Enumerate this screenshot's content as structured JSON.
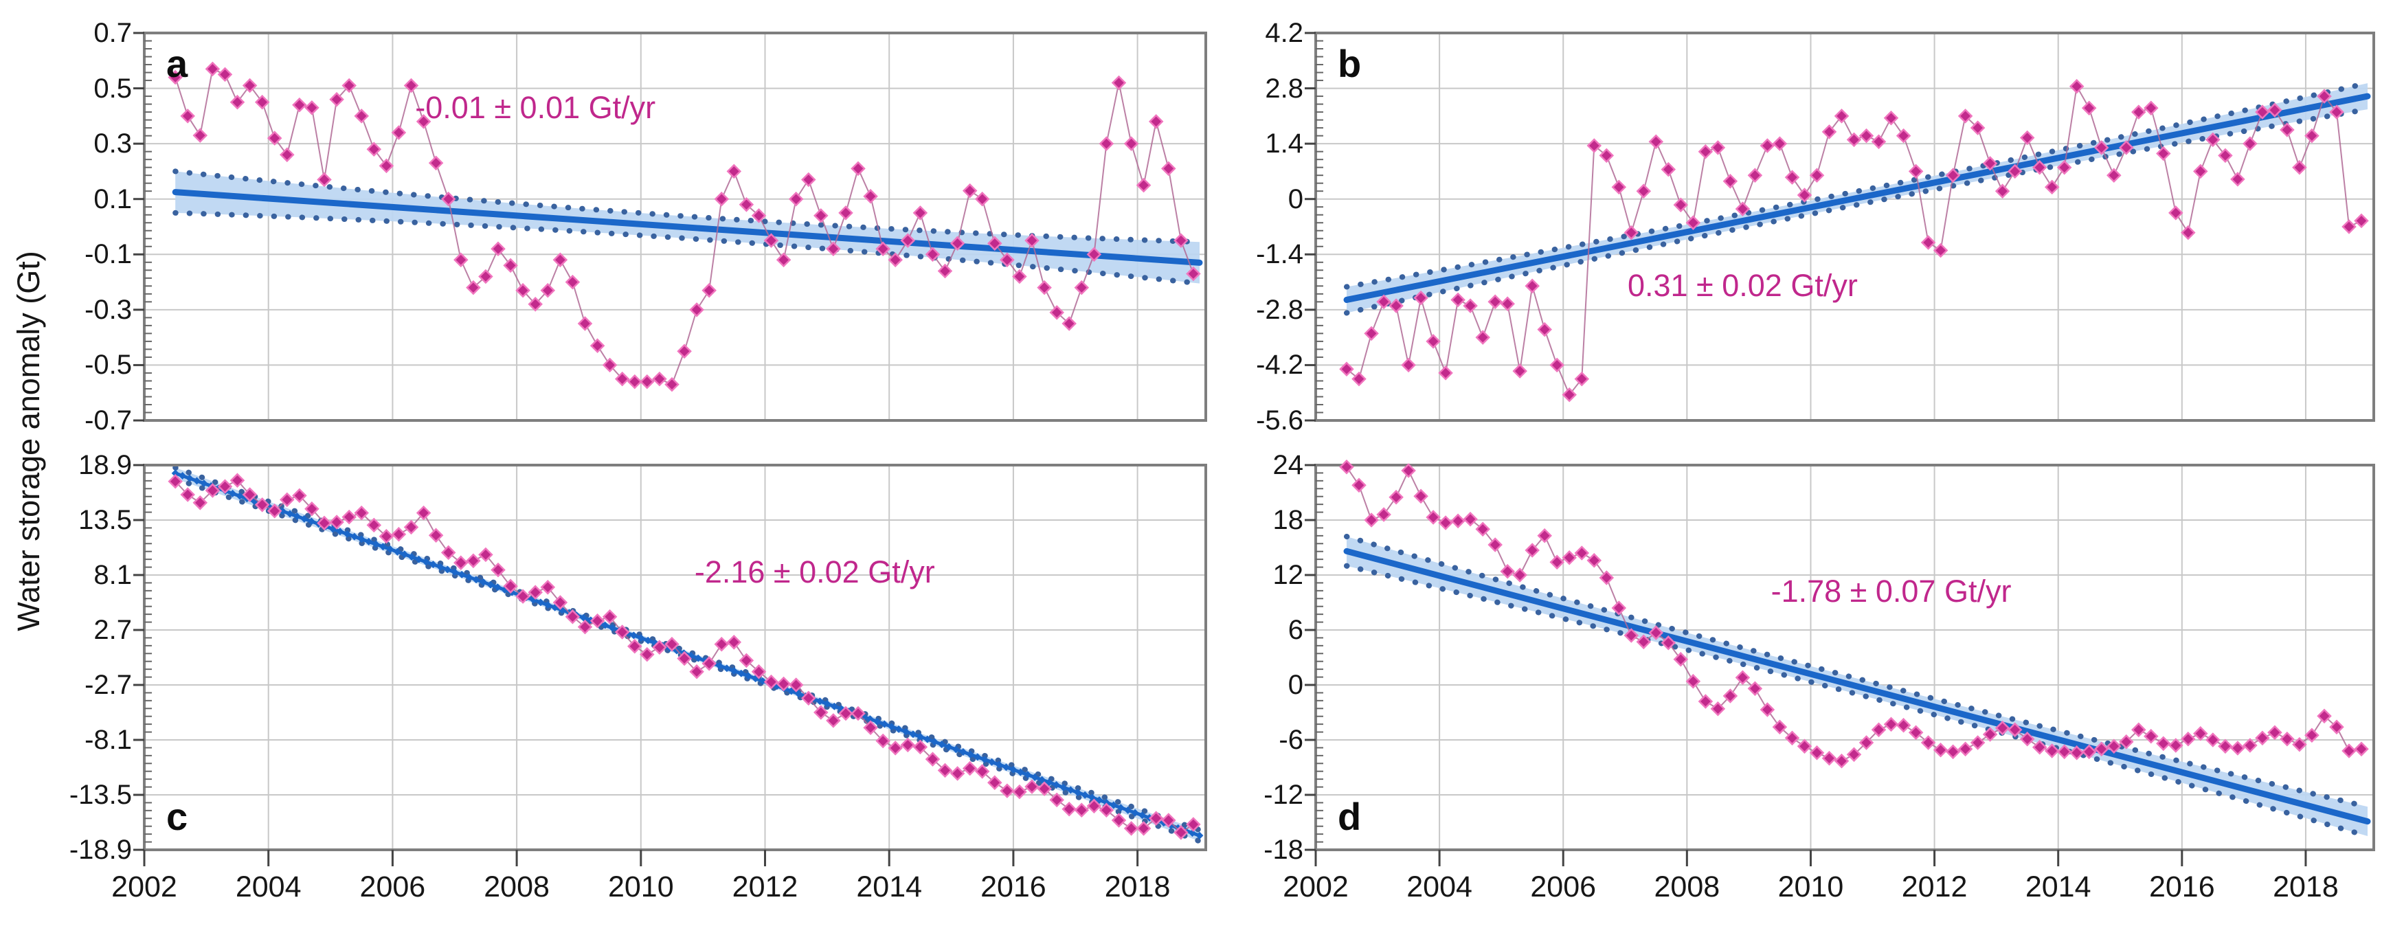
{
  "figure": {
    "y_axis_title": "Water storage anomaly (Gt)"
  },
  "colors": {
    "series": "#C22A8C",
    "series_halo": "#F075BE",
    "series_line": "#B06A95",
    "trend": "#1B67C9",
    "band": "#BCD6F2",
    "bound_dots": "#39629F",
    "annotation": "#C0278C",
    "grid": "#C8C8C8",
    "border": "#7E7E7E",
    "tick": "#444444",
    "minor_tick": "#666666"
  },
  "chart_data": [
    {
      "type": "scatter-line",
      "id": "a",
      "letter": "a",
      "letter_pos": "top",
      "annotation": {
        "text": "-0.01 ± 0.01 Gt/yr",
        "x": 2008.3,
        "y": 0.43
      },
      "x_range": [
        2002,
        2019.1
      ],
      "y_range": [
        -0.7,
        0.7
      ],
      "x_ticks": [
        2002,
        2004,
        2006,
        2008,
        2010,
        2012,
        2014,
        2016,
        2018
      ],
      "y_ticks": [
        "0.7",
        "0.5",
        "0.3",
        "0.1",
        "-0.1",
        "-0.3",
        "-0.5",
        "-0.7"
      ],
      "series": {
        "x_start": 2002.5,
        "x_step": 0.2,
        "values": [
          0.54,
          0.4,
          0.33,
          0.57,
          0.55,
          0.45,
          0.51,
          0.45,
          0.32,
          0.26,
          0.44,
          0.43,
          0.17,
          0.46,
          0.51,
          0.4,
          0.28,
          0.22,
          0.34,
          0.51,
          0.38,
          0.23,
          0.1,
          -0.12,
          -0.22,
          -0.18,
          -0.08,
          -0.14,
          -0.23,
          -0.28,
          -0.23,
          -0.12,
          -0.2,
          -0.35,
          -0.43,
          -0.5,
          -0.55,
          -0.56,
          -0.56,
          -0.55,
          -0.57,
          -0.45,
          -0.3,
          -0.23,
          0.1,
          0.2,
          0.08,
          0.04,
          -0.05,
          -0.12,
          0.1,
          0.17,
          0.04,
          -0.08,
          0.05,
          0.21,
          0.11,
          -0.08,
          -0.12,
          -0.05,
          0.05,
          -0.1,
          -0.16,
          -0.06,
          0.13,
          0.1,
          -0.06,
          -0.12,
          -0.18,
          -0.05,
          -0.22,
          -0.31,
          -0.35,
          -0.22,
          -0.1,
          0.3,
          0.52,
          0.3,
          0.15,
          0.38,
          0.21,
          -0.05,
          -0.17
        ]
      },
      "trend": {
        "x": [
          2002.5,
          2019.0
        ],
        "y": [
          0.125,
          -0.13
        ],
        "band": [
          0.075,
          0.04
        ],
        "style": "line"
      }
    },
    {
      "type": "scatter-line",
      "id": "b",
      "letter": "b",
      "letter_pos": "top",
      "annotation": {
        "text": "0.31 ± 0.02 Gt/yr",
        "x": 2008.9,
        "y": -2.2
      },
      "x_range": [
        2002,
        2019.1
      ],
      "y_range": [
        -5.6,
        4.2
      ],
      "x_ticks": [
        2002,
        2004,
        2006,
        2008,
        2010,
        2012,
        2014,
        2016,
        2018
      ],
      "y_ticks": [
        "4.2",
        "2.8",
        "1.4",
        "0",
        "-1.4",
        "-2.8",
        "-4.2",
        "-5.6"
      ],
      "series": {
        "x_start": 2002.5,
        "x_step": 0.2,
        "values": [
          -4.3,
          -4.55,
          -3.4,
          -2.6,
          -2.7,
          -4.2,
          -2.5,
          -3.6,
          -4.4,
          -2.55,
          -2.7,
          -3.5,
          -2.6,
          -2.65,
          -4.35,
          -2.2,
          -3.3,
          -4.2,
          -4.95,
          -4.55,
          1.35,
          1.1,
          0.3,
          -0.85,
          0.2,
          1.45,
          0.75,
          -0.15,
          -0.6,
          1.2,
          1.3,
          0.45,
          -0.25,
          0.6,
          1.35,
          1.4,
          0.55,
          0.1,
          0.6,
          1.7,
          2.1,
          1.5,
          1.6,
          1.45,
          2.05,
          1.6,
          0.7,
          -1.1,
          -1.3,
          0.6,
          2.1,
          1.8,
          0.9,
          0.2,
          0.7,
          1.55,
          0.8,
          0.3,
          0.8,
          2.85,
          2.3,
          1.3,
          0.6,
          1.3,
          2.2,
          2.3,
          1.15,
          -0.35,
          -0.85,
          0.7,
          1.5,
          1.1,
          0.5,
          1.4,
          2.2,
          2.25,
          1.75,
          0.8,
          1.6,
          2.6,
          2.2,
          -0.7,
          -0.55
        ]
      },
      "trend": {
        "x": [
          2002.5,
          2019.0
        ],
        "y": [
          -2.55,
          2.6
        ],
        "band": [
          0.33,
          0.17
        ],
        "style": "line"
      }
    },
    {
      "type": "scatter-line",
      "id": "c",
      "letter": "c",
      "letter_pos": "bottom",
      "annotation": {
        "text": "-2.16 ± 0.02 Gt/yr",
        "x": 2012.8,
        "y": 8.4
      },
      "x_range": [
        2002,
        2019.1
      ],
      "y_range": [
        -18.9,
        18.9
      ],
      "x_ticks": [
        2002,
        2004,
        2006,
        2008,
        2010,
        2012,
        2014,
        2016,
        2018
      ],
      "y_ticks": [
        "18.9",
        "13.5",
        "8.1",
        "2.7",
        "-2.7",
        "-8.1",
        "-13.5",
        "-18.9"
      ],
      "series": {
        "x_start": 2002.5,
        "x_step": 0.2,
        "values": [
          17.3,
          16.0,
          15.2,
          16.4,
          16.8,
          17.4,
          16.0,
          15.0,
          14.4,
          15.5,
          15.9,
          14.6,
          13.2,
          13.3,
          13.8,
          14.2,
          13.0,
          11.9,
          12.1,
          12.8,
          14.2,
          12.0,
          10.3,
          9.3,
          9.5,
          10.1,
          8.6,
          7.0,
          6.0,
          6.4,
          6.9,
          5.4,
          4.0,
          3.0,
          3.6,
          4.0,
          2.5,
          1.1,
          0.3,
          1.0,
          1.3,
          -0.1,
          -1.4,
          -0.6,
          1.3,
          1.5,
          -0.3,
          -1.4,
          -2.4,
          -2.6,
          -2.7,
          -4.0,
          -5.4,
          -6.2,
          -5.5,
          -5.5,
          -6.9,
          -8.2,
          -8.9,
          -8.6,
          -8.8,
          -10.0,
          -11.1,
          -11.4,
          -10.9,
          -11.2,
          -12.3,
          -13.1,
          -13.2,
          -12.7,
          -12.9,
          -14.0,
          -14.9,
          -15.0,
          -14.6,
          -15.0,
          -16.0,
          -16.8,
          -16.8,
          -15.8,
          -16.0,
          -17.2,
          -16.4
        ]
      },
      "trend": {
        "x": [
          2002.5,
          2019.0
        ],
        "y": [
          18.1,
          -17.5
        ],
        "band": [
          0.55,
          0.3
        ],
        "style": "diamond-line"
      }
    },
    {
      "type": "scatter-line",
      "id": "d",
      "letter": "d",
      "letter_pos": "bottom",
      "annotation": {
        "text": "-1.78 ± 0.07 Gt/yr",
        "x": 2011.3,
        "y": 10.2
      },
      "x_range": [
        2002,
        2019.1
      ],
      "y_range": [
        -18,
        24
      ],
      "x_ticks": [
        2002,
        2004,
        2006,
        2008,
        2010,
        2012,
        2014,
        2016,
        2018
      ],
      "y_ticks": [
        "24",
        "18",
        "12",
        "6",
        "0",
        "-6",
        "-12",
        "-18"
      ],
      "series": {
        "x_start": 2002.5,
        "x_step": 0.2,
        "values": [
          23.8,
          21.8,
          18.0,
          18.6,
          20.5,
          23.4,
          20.6,
          18.3,
          17.7,
          17.9,
          18.1,
          17.0,
          15.3,
          12.4,
          12.0,
          14.7,
          16.3,
          13.4,
          13.9,
          14.4,
          13.6,
          11.7,
          8.4,
          5.4,
          4.7,
          5.7,
          4.6,
          2.8,
          0.4,
          -1.8,
          -2.6,
          -1.2,
          0.8,
          -0.4,
          -2.7,
          -4.6,
          -5.8,
          -6.7,
          -7.4,
          -8.0,
          -8.3,
          -7.6,
          -6.3,
          -4.9,
          -4.3,
          -4.4,
          -5.2,
          -6.3,
          -7.1,
          -7.3,
          -7.0,
          -6.3,
          -5.4,
          -4.7,
          -4.9,
          -5.9,
          -6.8,
          -7.2,
          -7.3,
          -7.4,
          -7.3,
          -7.0,
          -6.7,
          -6.2,
          -4.9,
          -5.6,
          -6.4,
          -6.6,
          -5.9,
          -5.3,
          -6.0,
          -6.7,
          -6.9,
          -6.6,
          -5.8,
          -5.2,
          -5.9,
          -6.5,
          -5.5,
          -3.4,
          -4.6,
          -7.2,
          -7.0
        ]
      },
      "trend": {
        "x": [
          2002.5,
          2019.0
        ],
        "y": [
          14.6,
          -14.9
        ],
        "band": [
          1.6,
          0.85
        ],
        "style": "line"
      }
    }
  ]
}
